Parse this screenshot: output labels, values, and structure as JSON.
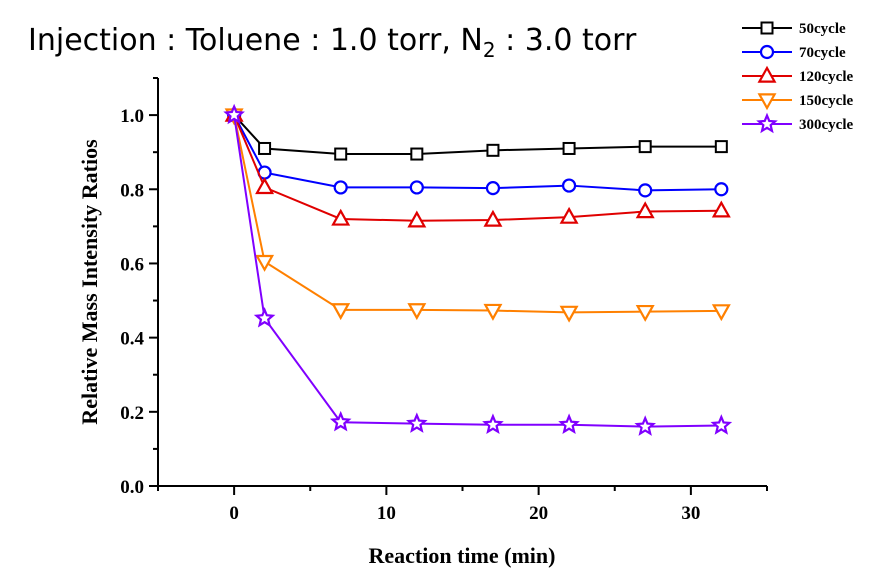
{
  "chart_data": {
    "type": "line",
    "title": {
      "prefix": "Injection : Toluene : 1.0 torr, N",
      "subscript": "2",
      "suffix": " : 3.0 torr"
    },
    "xlabel": "Reaction time (min)",
    "ylabel": "Relative Mass Intensity Ratios",
    "xlim": [
      -5,
      35
    ],
    "ylim": [
      0,
      1.1
    ],
    "xticks": [
      0,
      10,
      20,
      30
    ],
    "xtick_labels": [
      "0",
      "10",
      "20",
      "30"
    ],
    "yticks": [
      0,
      0.2,
      0.4,
      0.6,
      0.8,
      1.0
    ],
    "ytick_labels": [
      "0.0",
      "0.2",
      "0.4",
      "0.6",
      "0.8",
      "1.0"
    ],
    "grid": false,
    "legend_position": "top-right",
    "x": [
      0,
      2,
      7,
      12,
      17,
      22,
      27,
      32
    ],
    "series": [
      {
        "name": "50cycle",
        "marker": "square",
        "color": "#000000",
        "values": [
          1.0,
          0.91,
          0.895,
          0.895,
          0.905,
          0.91,
          0.915,
          0.915
        ]
      },
      {
        "name": "70cycle",
        "marker": "circle",
        "color": "#0000ff",
        "values": [
          1.0,
          0.845,
          0.805,
          0.805,
          0.803,
          0.81,
          0.797,
          0.8
        ]
      },
      {
        "name": "120cycle",
        "marker": "triangle-up",
        "color": "#e00000",
        "values": [
          1.0,
          0.805,
          0.72,
          0.715,
          0.717,
          0.725,
          0.74,
          0.742
        ]
      },
      {
        "name": "150cycle",
        "marker": "triangle-down",
        "color": "#ff8000",
        "values": [
          1.0,
          0.605,
          0.475,
          0.475,
          0.473,
          0.468,
          0.47,
          0.472
        ]
      },
      {
        "name": "300cycle",
        "marker": "star",
        "color": "#8000ff",
        "values": [
          1.0,
          0.452,
          0.172,
          0.168,
          0.165,
          0.165,
          0.16,
          0.163
        ]
      }
    ]
  }
}
